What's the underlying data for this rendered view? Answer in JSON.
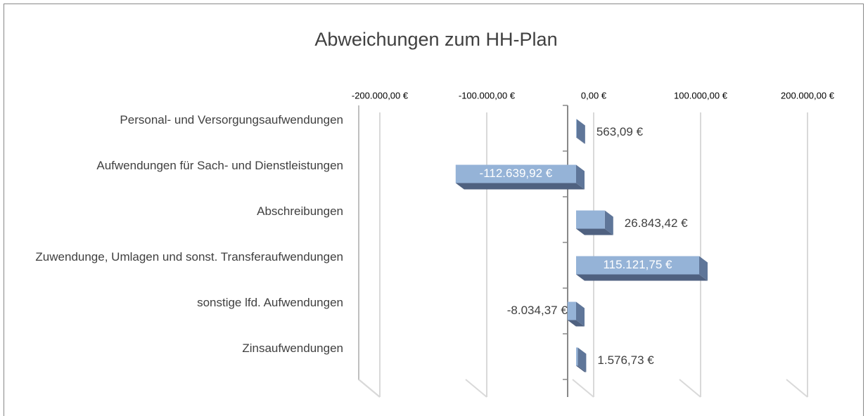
{
  "chart_data": {
    "type": "bar",
    "orientation": "horizontal",
    "title": "Abweichungen zum HH-Plan",
    "categories": [
      "Personal- und Versorgungsaufwendungen",
      "Aufwendungen für Sach- und Dienstleistungen",
      "Abschreibungen",
      "Zuwendunge, Umlagen und sonst. Transferaufwendungen",
      "sonstige lfd. Aufwendungen",
      "Zinsaufwendungen"
    ],
    "values": [
      563.09,
      -112639.92,
      26843.42,
      115121.75,
      -8034.37,
      1576.73
    ],
    "value_labels": [
      "563,09 €",
      "-112.639,92 €",
      "26.843,42 €",
      "115.121,75 €",
      "-8.034,37 €",
      "1.576,73 €"
    ],
    "color": "#95b3d7",
    "xlim": [
      -200000,
      200000
    ],
    "xticks": [
      {
        "value": -200000,
        "label": "-200.000,00 €"
      },
      {
        "value": -100000,
        "label": "-100.000,00 €"
      },
      {
        "value": 0,
        "label": "0,00 €"
      },
      {
        "value": 100000,
        "label": "100.000,00 €"
      },
      {
        "value": 200000,
        "label": "200.000,00 €"
      }
    ],
    "grid": true
  }
}
